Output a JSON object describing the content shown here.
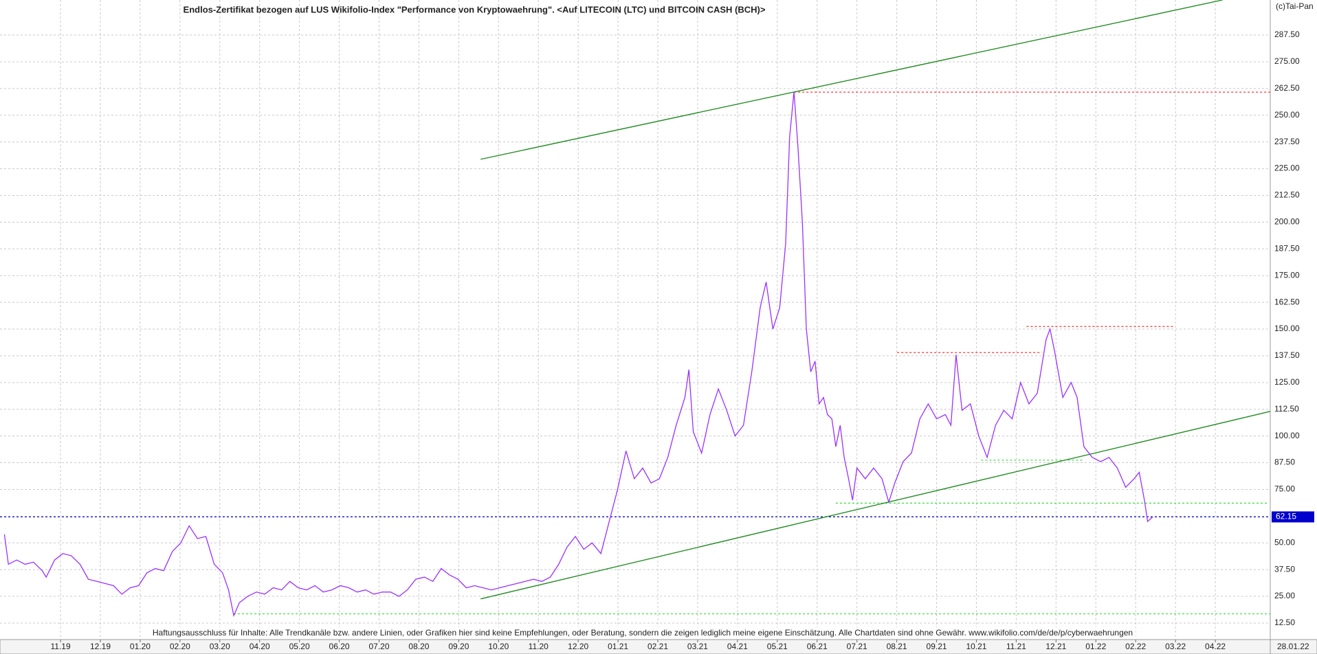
{
  "chart_data": {
    "type": "line",
    "title": "Endlos-Zertifikat bezogen auf LUS Wikifolio-Index \"Performance von Kryptowaehrung\". <Auf LITECOIN (LTC) und BITCOIN CASH (BCH)>",
    "copyright": "(c)Tai-Pan",
    "disclaimer": "Haftungsausschluss für Inhalte: Alle Trendkanäle bzw. andere Linien, oder Grafiken hier sind keine Empfehlungen, oder Beratung, sondern die zeigen lediglich meine eigene Einschätzung. Alle Chartdaten sind ohne Gewähr.  www.wikifolio.com/de/de/p/cyberwaehrungen",
    "date_label": "28.01.22",
    "grid": true,
    "xlim": [
      -1.52,
      30.38
    ],
    "ylim": [
      5.1,
      303.9
    ],
    "xticks": [
      {
        "value": 0,
        "label": "11.19"
      },
      {
        "value": 1,
        "label": "12.19"
      },
      {
        "value": 2,
        "label": "01.20"
      },
      {
        "value": 3,
        "label": "02.20"
      },
      {
        "value": 4,
        "label": "03.20"
      },
      {
        "value": 5,
        "label": "04.20"
      },
      {
        "value": 6,
        "label": "05.20"
      },
      {
        "value": 7,
        "label": "06.20"
      },
      {
        "value": 8,
        "label": "07.20"
      },
      {
        "value": 9,
        "label": "08.20"
      },
      {
        "value": 10,
        "label": "09.20"
      },
      {
        "value": 11,
        "label": "10.20"
      },
      {
        "value": 12,
        "label": "11.20"
      },
      {
        "value": 13,
        "label": "12.20"
      },
      {
        "value": 14,
        "label": "01.21"
      },
      {
        "value": 15,
        "label": "02.21"
      },
      {
        "value": 16,
        "label": "03.21"
      },
      {
        "value": 17,
        "label": "04.21"
      },
      {
        "value": 18,
        "label": "05.21"
      },
      {
        "value": 19,
        "label": "06.21"
      },
      {
        "value": 20,
        "label": "07.21"
      },
      {
        "value": 21,
        "label": "08.21"
      },
      {
        "value": 22,
        "label": "09.21"
      },
      {
        "value": 23,
        "label": "10.21"
      },
      {
        "value": 24,
        "label": "11.21"
      },
      {
        "value": 25,
        "label": "12.21"
      },
      {
        "value": 26,
        "label": "01.22"
      },
      {
        "value": 27,
        "label": "02.22"
      },
      {
        "value": 28,
        "label": "03.22"
      },
      {
        "value": 29,
        "label": "04.22"
      }
    ],
    "yticks": [
      {
        "value": 12.5,
        "label": "12.50"
      },
      {
        "value": 25,
        "label": "25.00"
      },
      {
        "value": 37.5,
        "label": "37.50"
      },
      {
        "value": 50,
        "label": "50.00"
      },
      {
        "value": 62.5,
        "label": "62.50"
      },
      {
        "value": 75,
        "label": "75.00"
      },
      {
        "value": 87.5,
        "label": "87.50"
      },
      {
        "value": 100,
        "label": "100.00"
      },
      {
        "value": 112.5,
        "label": "112.50"
      },
      {
        "value": 125,
        "label": "125.00"
      },
      {
        "value": 137.5,
        "label": "137.50"
      },
      {
        "value": 150,
        "label": "150.00"
      },
      {
        "value": 162.5,
        "label": "162.50"
      },
      {
        "value": 175,
        "label": "175.00"
      },
      {
        "value": 187.5,
        "label": "187.50"
      },
      {
        "value": 200,
        "label": "200.00"
      },
      {
        "value": 212.5,
        "label": "212.50"
      },
      {
        "value": 225,
        "label": "225.00"
      },
      {
        "value": 237.5,
        "label": "237.50"
      },
      {
        "value": 250,
        "label": "250.00"
      },
      {
        "value": 262.5,
        "label": "262.50"
      },
      {
        "value": 275,
        "label": "275.00"
      },
      {
        "value": 287.5,
        "label": "287.50"
      }
    ],
    "series": [
      {
        "color": "#9b30ff",
        "x": [
          -1.41,
          -1.31,
          -1.1,
          -0.89,
          -0.68,
          -0.46,
          -0.36,
          -0.15,
          0.06,
          0.27,
          0.49,
          0.7,
          0.91,
          1.12,
          1.33,
          1.54,
          1.75,
          1.96,
          2.17,
          2.38,
          2.59,
          2.81,
          3.02,
          3.23,
          3.44,
          3.65,
          3.86,
          4.07,
          4.22,
          4.35,
          4.49,
          4.7,
          4.92,
          5.13,
          5.34,
          5.55,
          5.76,
          5.97,
          6.18,
          6.39,
          6.6,
          6.81,
          7.03,
          7.24,
          7.45,
          7.66,
          7.87,
          8.08,
          8.29,
          8.5,
          8.71,
          8.92,
          9.14,
          9.35,
          9.56,
          9.77,
          9.98,
          10.19,
          10.4,
          10.61,
          10.82,
          11.03,
          11.24,
          11.46,
          11.67,
          11.88,
          12.09,
          12.3,
          12.51,
          12.72,
          12.93,
          13.14,
          13.35,
          13.57,
          13.78,
          13.99,
          14.2,
          14.41,
          14.62,
          14.83,
          15.04,
          15.25,
          15.46,
          15.68,
          15.78,
          15.89,
          16.1,
          16.31,
          16.52,
          16.73,
          16.94,
          17.15,
          17.36,
          17.57,
          17.72,
          17.89,
          18.06,
          18.21,
          18.31,
          18.42,
          18.52,
          18.63,
          18.73,
          18.84,
          18.95,
          19.05,
          19.16,
          19.26,
          19.37,
          19.47,
          19.58,
          19.68,
          19.79,
          19.89,
          20.0,
          20.21,
          20.42,
          20.63,
          20.8,
          20.95,
          21.16,
          21.37,
          21.58,
          21.79,
          22.0,
          22.22,
          22.36,
          22.49,
          22.64,
          22.85,
          23.06,
          23.27,
          23.48,
          23.69,
          23.9,
          24.11,
          24.32,
          24.53,
          24.75,
          24.85,
          24.96,
          25.17,
          25.38,
          25.53,
          25.7,
          25.91,
          26.12,
          26.33,
          26.54,
          26.75,
          26.96,
          27.09,
          27.22,
          27.3,
          27.43
        ],
        "values": [
          54,
          40,
          42,
          40,
          41,
          37,
          34,
          42,
          45,
          44,
          40,
          33,
          32,
          31,
          30,
          26,
          29,
          30,
          36,
          38,
          37,
          46,
          50,
          58,
          52,
          53,
          40,
          36,
          28,
          16,
          22,
          25,
          27,
          26,
          29,
          28,
          32,
          29,
          28,
          30,
          27,
          28,
          30,
          29,
          27,
          28,
          26,
          27,
          27,
          25,
          28,
          33,
          34,
          32,
          38,
          35,
          33,
          29,
          30,
          29,
          28,
          29,
          30,
          31,
          32,
          33,
          32,
          34,
          40,
          48,
          53,
          47,
          50,
          45,
          60,
          75,
          93,
          80,
          85,
          78,
          80,
          90,
          105,
          118,
          131,
          102,
          92,
          110,
          122,
          112,
          100,
          105,
          130,
          160,
          172,
          150,
          160,
          190,
          240,
          261,
          235,
          200,
          150,
          130,
          135,
          115,
          118,
          110,
          108,
          95,
          105,
          90,
          80,
          70,
          85,
          80,
          85,
          80,
          69,
          78,
          88,
          92,
          108,
          115,
          108,
          110,
          105,
          138,
          112,
          115,
          100,
          90,
          105,
          112,
          108,
          125,
          115,
          120,
          145,
          150,
          140,
          118,
          125,
          118,
          95,
          90,
          88,
          90,
          85,
          76,
          80,
          83,
          70,
          60,
          62.15
        ]
      }
    ],
    "trendlines": [
      {
        "color": "#228b22",
        "x": [
          10.55,
          29.18
        ],
        "y": [
          229.4,
          303.9
        ]
      },
      {
        "color": "#228b22",
        "x": [
          10.55,
          30.38
        ],
        "y": [
          23.8,
          111.5
        ]
      }
    ],
    "levels": [
      {
        "color": "#ff3030",
        "value": 260.8,
        "x": [
          18.42,
          30.38
        ]
      },
      {
        "color": "#ff3030",
        "value": 139,
        "x": [
          21.01,
          24.64
        ]
      },
      {
        "color": "#ff3030",
        "value": 151.2,
        "x": [
          24.26,
          27.97
        ]
      },
      {
        "color": "#33dd33",
        "value": 88.7,
        "x": [
          23.12,
          25.7
        ]
      },
      {
        "color": "#33dd33",
        "value": 68.6,
        "x": [
          19.47,
          30.34
        ]
      },
      {
        "color": "#33dd33",
        "value": 16.8,
        "x": [
          4.35,
          30.38
        ]
      }
    ],
    "current": {
      "value": 62.15,
      "color": "#0000cc"
    }
  }
}
